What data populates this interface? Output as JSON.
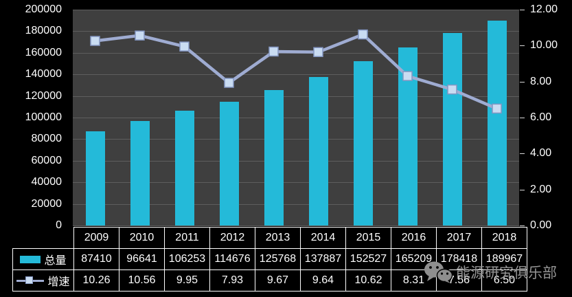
{
  "chart_data": {
    "type": "bar",
    "subtype": "bar-line-combo",
    "title": "",
    "xlabel": "",
    "ylabel": "",
    "categories": [
      "2009",
      "2010",
      "2011",
      "2012",
      "2013",
      "2014",
      "2015",
      "2016",
      "2017",
      "2018"
    ],
    "series": [
      {
        "name": "总量",
        "type": "bar",
        "axis": "left",
        "values": [
          87410,
          96641,
          106253,
          114676,
          125768,
          137887,
          152527,
          165209,
          178418,
          189967
        ]
      },
      {
        "name": "增速",
        "type": "line",
        "axis": "right",
        "values": [
          10.26,
          10.56,
          9.95,
          7.93,
          9.67,
          9.64,
          10.62,
          8.31,
          7.56,
          6.5
        ]
      }
    ],
    "left_axis": {
      "min": 0,
      "max": 200000,
      "step": 20000,
      "ticks": [
        "0",
        "20000",
        "40000",
        "60000",
        "80000",
        "100000",
        "120000",
        "140000",
        "160000",
        "180000",
        "200000"
      ]
    },
    "right_axis": {
      "min": 0,
      "max": 12,
      "step": 2,
      "ticks": [
        "0.00",
        "2.00",
        "4.00",
        "6.00",
        "8.00",
        "10.00",
        "12.00"
      ]
    },
    "grid": true,
    "legend_position": "data-table-left"
  },
  "legend": {
    "total_label": "总量",
    "growth_label": "增速"
  },
  "watermark": {
    "icon": "wechat-icon",
    "text": "能源研究俱乐部"
  },
  "colors": {
    "background": "#000000",
    "plot_background": "#3F3F3F",
    "gridline": "#5E5E5E",
    "bar": "#24BAD9",
    "line": "#9FACD2",
    "marker_fill": "#C9DCF2",
    "marker_border": "#8496C2",
    "text": "#FFFFFF",
    "table_border": "#FFFFFF",
    "watermark_text": "#939393"
  }
}
